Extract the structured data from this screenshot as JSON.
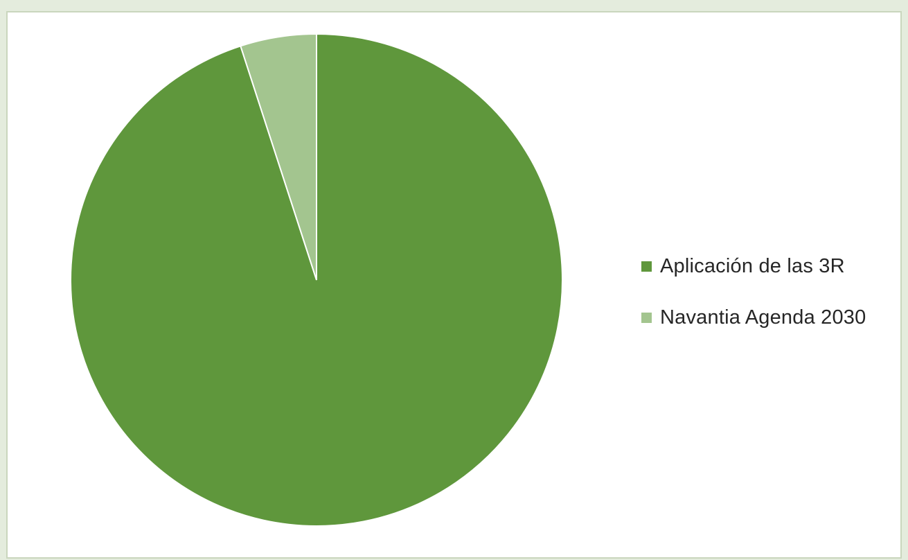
{
  "chart_data": {
    "type": "pie",
    "title": "",
    "start_angle_deg": 0,
    "direction": "clockwise",
    "legend_position": "right",
    "slices": [
      {
        "label": "Aplicación de las 3R",
        "value": 95,
        "color": "#5f973c"
      },
      {
        "label": "Navantia Agenda 2030",
        "value": 5,
        "color": "#a3c58f"
      }
    ]
  }
}
